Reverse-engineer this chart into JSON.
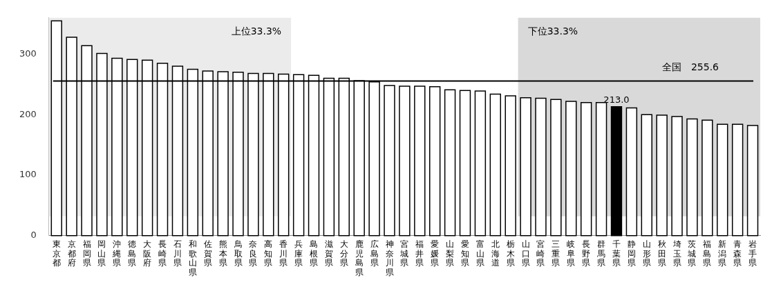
{
  "chart_data": {
    "type": "bar",
    "categories": [
      "東京都",
      "京都府",
      "福岡県",
      "岡山県",
      "沖縄県",
      "徳島県",
      "大阪府",
      "長崎県",
      "石川県",
      "和歌山県",
      "佐賀県",
      "熊本県",
      "鳥取県",
      "奈良県",
      "高知県",
      "香川県",
      "兵庫県",
      "島根県",
      "滋賀県",
      "大分県",
      "鹿児島県",
      "広島県",
      "神奈川県",
      "宮城県",
      "福井県",
      "愛媛県",
      "山梨県",
      "愛知県",
      "富山県",
      "北海道",
      "栃木県",
      "山口県",
      "宮崎県",
      "三重県",
      "岐阜県",
      "長野県",
      "群馬県",
      "千葉県",
      "静岡県",
      "山形県",
      "秋田県",
      "埼玉県",
      "茨城県",
      "福島県",
      "新潟県",
      "青森県",
      "岩手県"
    ],
    "values": [
      355,
      328,
      314,
      301,
      293,
      291,
      290,
      285,
      280,
      275,
      272,
      271,
      270,
      268,
      268,
      267,
      266,
      265,
      260,
      260,
      256,
      254,
      248,
      247,
      247,
      246,
      241,
      240,
      239,
      234,
      231,
      228,
      227,
      225,
      222,
      220,
      220,
      213.0,
      211,
      200,
      199,
      197,
      193,
      191,
      184,
      184,
      182
    ],
    "colors": [
      "#ffffff",
      "#ffffff",
      "#ffffff",
      "#ffffff",
      "#ffffff",
      "#ffffff",
      "#ffffff",
      "#ffffff",
      "#ffffff",
      "#ffffff",
      "#ffffff",
      "#ffffff",
      "#ffffff",
      "#ffffff",
      "#ffffff",
      "#ffffff",
      "#ffffff",
      "#ffffff",
      "#ffffff",
      "#ffffff",
      "#ffffff",
      "#ffffff",
      "#ffffff",
      "#ffffff",
      "#ffffff",
      "#ffffff",
      "#ffffff",
      "#ffffff",
      "#ffffff",
      "#ffffff",
      "#ffffff",
      "#ffffff",
      "#ffffff",
      "#ffffff",
      "#ffffff",
      "#ffffff",
      "#ffffff",
      "#000000",
      "#ffffff",
      "#ffffff",
      "#ffffff",
      "#ffffff",
      "#ffffff",
      "#ffffff",
      "#ffffff",
      "#ffffff",
      "#ffffff"
    ],
    "value_labels": [
      null,
      null,
      null,
      null,
      null,
      null,
      null,
      null,
      null,
      null,
      null,
      null,
      null,
      null,
      null,
      null,
      null,
      null,
      null,
      null,
      null,
      null,
      null,
      null,
      null,
      null,
      null,
      null,
      null,
      null,
      null,
      null,
      null,
      null,
      null,
      null,
      null,
      "213.0",
      null,
      null,
      null,
      null,
      null,
      null,
      null,
      null,
      null
    ],
    "ylim": [
      0,
      360
    ],
    "yticks": [
      0,
      100,
      200,
      300
    ],
    "grid": false,
    "legend": false,
    "ref_lines": [
      {
        "axis": "y",
        "value": 255.6,
        "label": "全国　255.6",
        "color": "#000000"
      }
    ],
    "bands": [
      {
        "axis": "x",
        "from": "東京都",
        "to": "香川県",
        "label": "上位33.3%",
        "color": "#ebebeb"
      },
      {
        "axis": "x",
        "from": "山口県",
        "to": "岩手県",
        "label": "下位33.3%",
        "color": "#d9d9d9"
      }
    ]
  }
}
